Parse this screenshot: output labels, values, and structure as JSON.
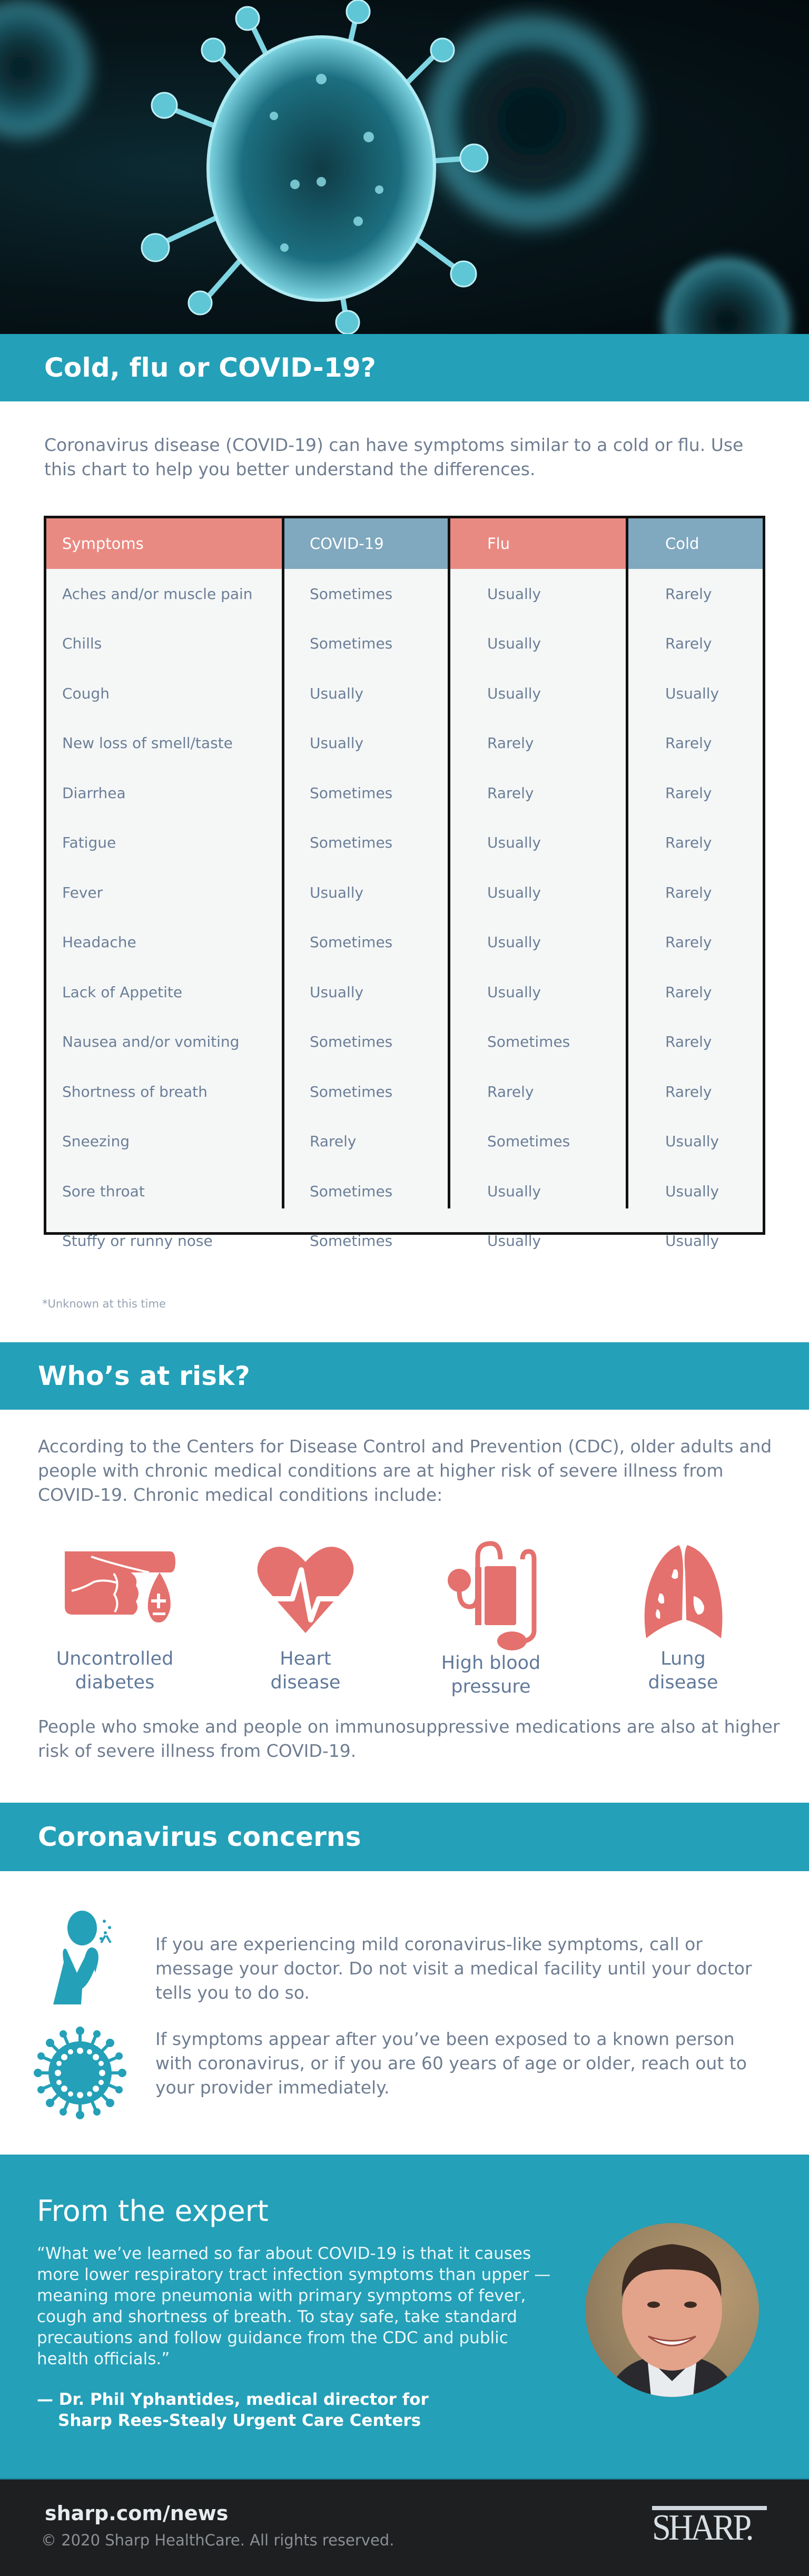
{
  "hero": {
    "image_alt": "coronavirus-particles-illustration",
    "colors": {
      "background": "#061419",
      "virus": "#3fb6c9"
    }
  },
  "section1": {
    "title": "Cold, flu or COVID-19?",
    "intro": "Coronavirus disease (COVID-19) can have symptoms similar to a cold or flu. Use this chart to help you better understand the differences."
  },
  "table": {
    "headers": [
      "Symptoms",
      "COVID-19",
      "Flu",
      "Cold"
    ],
    "header_colors": [
      "#e98a82",
      "#80a8bf",
      "#e98a82",
      "#80a8bf"
    ],
    "rows": [
      [
        "Aches and/or muscle pain",
        "Sometimes",
        "Usually",
        "Rarely"
      ],
      [
        "Chills",
        "Sometimes",
        "Usually",
        "Rarely"
      ],
      [
        "Cough",
        "Usually",
        "Usually",
        "Usually"
      ],
      [
        "New loss of smell/taste",
        "Usually",
        "Rarely",
        "Rarely"
      ],
      [
        "Diarrhea",
        "Sometimes",
        "Rarely",
        "Rarely"
      ],
      [
        "Fatigue",
        "Sometimes",
        "Usually",
        "Rarely"
      ],
      [
        "Fever",
        "Usually",
        "Usually",
        "Rarely"
      ],
      [
        "Headache",
        "Sometimes",
        "Usually",
        "Rarely"
      ],
      [
        "Lack of Appetite",
        "Usually",
        "Usually",
        "Rarely"
      ],
      [
        "Nausea and/or vomiting",
        "Sometimes",
        "Sometimes",
        "Rarely"
      ],
      [
        "Shortness of breath",
        "Sometimes",
        "Rarely",
        "Rarely"
      ],
      [
        "Sneezing",
        "Rarely",
        "Sometimes",
        "Usually"
      ],
      [
        "Sore throat",
        "Sometimes",
        "Usually",
        "Usually"
      ],
      [
        "Stuffy or runny nose",
        "Sometimes",
        "Usually",
        "Usually"
      ]
    ],
    "footnote": "*Unknown at this time"
  },
  "section2": {
    "title": "Who’s at risk?",
    "intro": "According to the Centers for Disease Control and Prevention (CDC), older adults and people with chronic medical conditions are at higher risk of severe illness from COVID-19. Chronic medical conditions include:",
    "conditions": [
      {
        "icon": "diabetes-finger-prick-icon",
        "line1": "Uncontrolled",
        "line2": "diabetes"
      },
      {
        "icon": "heart-pulse-icon",
        "line1": "Heart",
        "line2": "disease"
      },
      {
        "icon": "blood-pressure-cuff-icon",
        "line1": "High blood",
        "line2": "pressure"
      },
      {
        "icon": "lungs-icon",
        "line1": "Lung",
        "line2": "disease"
      }
    ],
    "icon_color": "#e4716d",
    "outro": "People who smoke and people on immunosuppressive medications are also at higher risk of severe illness from COVID-19."
  },
  "section3": {
    "title": "Coronavirus concerns",
    "items": [
      {
        "icon": "coughing-person-icon",
        "text": "If you are experiencing mild coronavirus-like symptoms, call or message your doctor. Do not visit a medical facility until your doctor tells you to do so."
      },
      {
        "icon": "virus-icon",
        "text": "If symptoms appear after you’ve been exposed to a known person with coronavirus, or if you are 60 years of age or older, reach out to your provider immediately."
      }
    ],
    "icon_color": "#24a0b8"
  },
  "expert": {
    "title": "From the expert",
    "quote": "“What we’ve learned so far about COVID-19 is that it causes more lower respiratory tract infection symptoms than upper — meaning more pneumonia with primary symptoms of fever, cough and shortness of breath. To stay safe, take standard precautions and follow guidance from the CDC and public health officials.”",
    "attribution_line1": "— Dr. Phil Yphantides, medical director for",
    "attribution_line2": "Sharp Rees-Stealy Urgent Care Centers",
    "photo_alt": "portrait-of-dr-phil-yphantides"
  },
  "footer": {
    "site": "sharp.com/news",
    "copyright": "© 2020 Sharp HealthCare. All rights reserved.",
    "logo_text": "SHARP."
  },
  "colors": {
    "band": "#24a0b8",
    "footer_bg": "#1e1f21",
    "body_text": "#6f7d91",
    "table_bg": "#f5f7f7"
  }
}
